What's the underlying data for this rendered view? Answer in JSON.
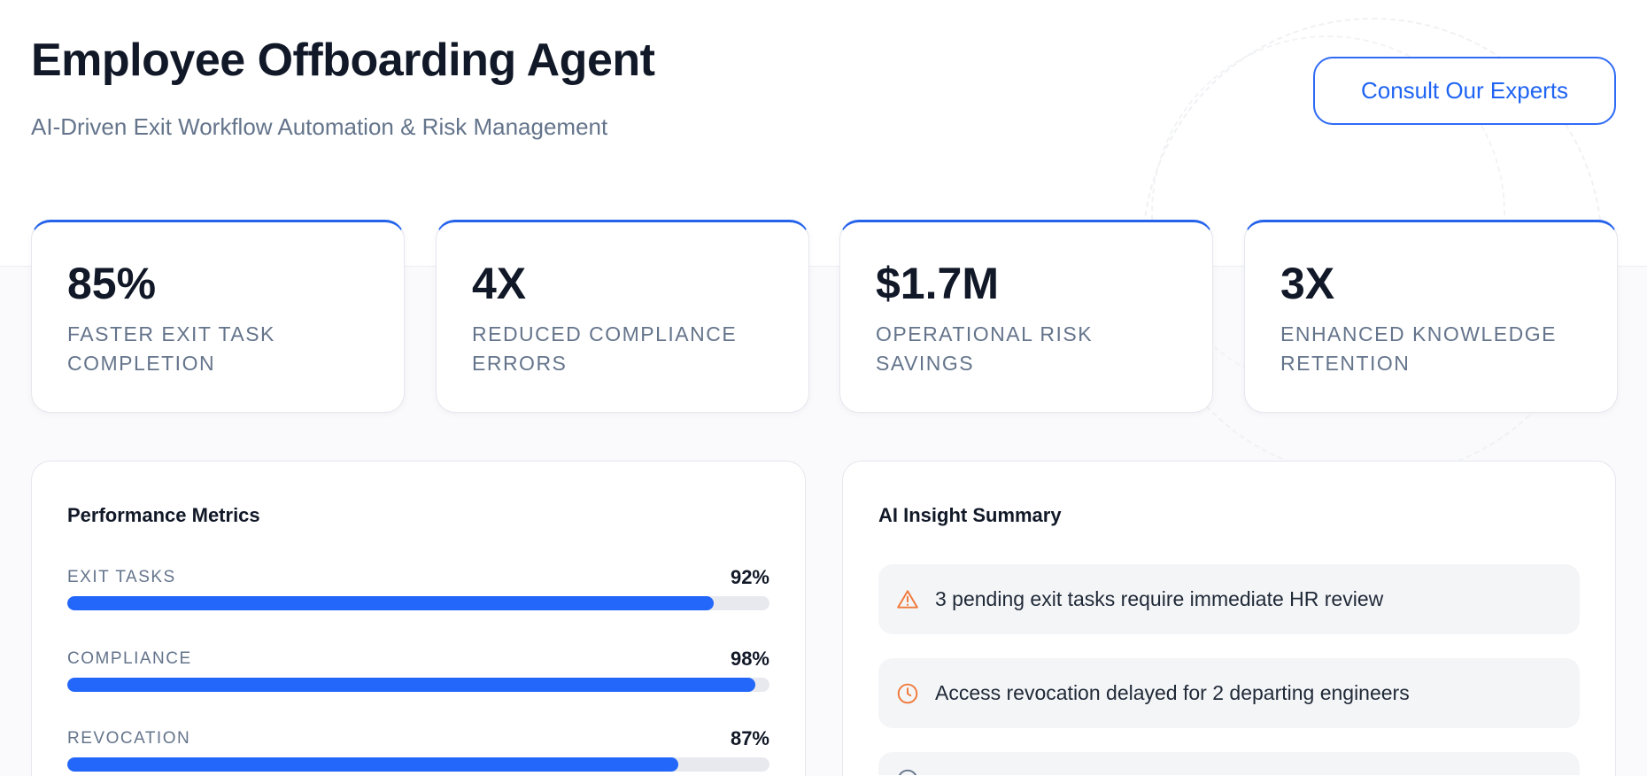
{
  "header": {
    "title": "Employee Offboarding Agent",
    "subtitle": "AI-Driven Exit Workflow Automation & Risk Management",
    "cta_label": "Consult Our Experts"
  },
  "stats": [
    {
      "value": "85%",
      "label": "FASTER EXIT TASK COMPLETION"
    },
    {
      "value": "4X",
      "label": "REDUCED COMPLIANCE ERRORS"
    },
    {
      "value": "$1.7M",
      "label": "OPERATIONAL RISK SAVINGS"
    },
    {
      "value": "3X",
      "label": "ENHANCED KNOWLEDGE RETENTION"
    }
  ],
  "performance": {
    "title": "Performance Metrics",
    "metrics": [
      {
        "label": "EXIT TASKS",
        "value": "92%",
        "percent": 92
      },
      {
        "label": "COMPLIANCE",
        "value": "98%",
        "percent": 98
      },
      {
        "label": "REVOCATION",
        "value": "87%",
        "percent": 87
      }
    ]
  },
  "insights": {
    "title": "AI Insight Summary",
    "items": [
      {
        "icon": "warning-triangle-icon",
        "text": "3 pending exit tasks require immediate HR review"
      },
      {
        "icon": "clock-icon",
        "text": "Access revocation delayed for 2 departing engineers"
      },
      {
        "icon": "info-icon",
        "text": ""
      }
    ]
  },
  "colors": {
    "accent": "#2563eb",
    "warning": "#f07a3c",
    "muted": "#64748b"
  }
}
